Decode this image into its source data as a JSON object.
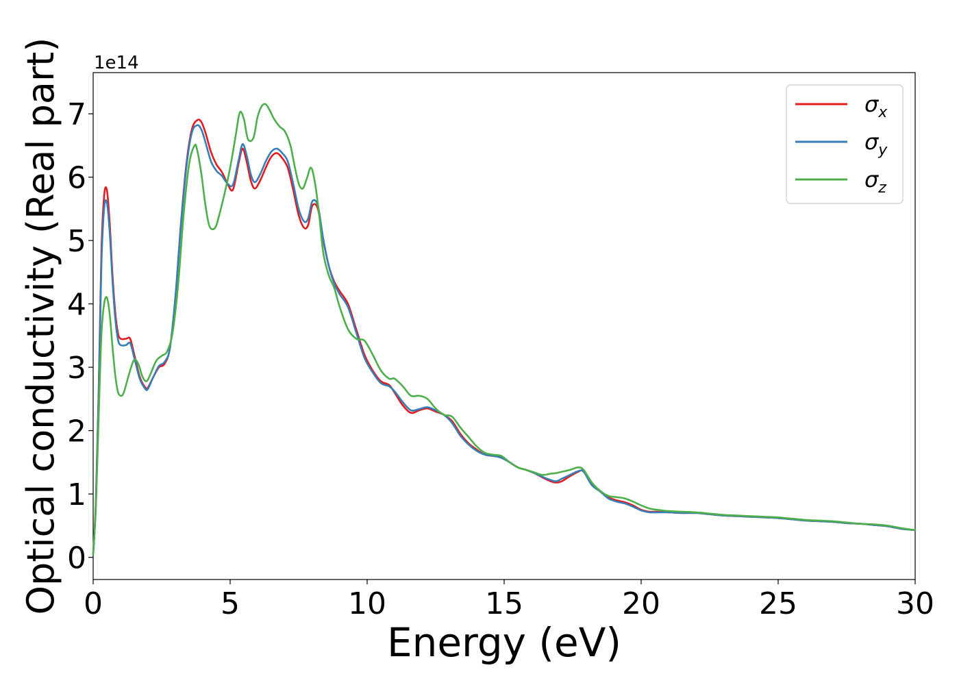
{
  "chart_data": {
    "type": "line",
    "title": "",
    "xlabel": "Energy (eV)",
    "ylabel": "Optical conductivity (Real part)",
    "y_offset_text": "1e14",
    "xlim": [
      0,
      30
    ],
    "ylim": [
      -0.35,
      7.65
    ],
    "x_ticks": [
      0,
      5,
      10,
      15,
      20,
      25,
      30
    ],
    "x_tick_labels": [
      "0",
      "5",
      "10",
      "15",
      "20",
      "25",
      "30"
    ],
    "y_ticks": [
      0,
      1,
      2,
      3,
      4,
      5,
      6,
      7
    ],
    "y_tick_labels": [
      "0",
      "1",
      "2",
      "3",
      "4",
      "5",
      "6",
      "7"
    ],
    "grid": false,
    "legend_position": "top-right",
    "series": [
      {
        "name": "σx",
        "name_base": "σ",
        "name_sub": "x",
        "color": "#e41a1c",
        "x": [
          0,
          0.1,
          0.2,
          0.3,
          0.4,
          0.5,
          0.6,
          0.7,
          0.8,
          0.9,
          1.0,
          1.2,
          1.35,
          1.5,
          1.7,
          1.9,
          2.0,
          2.2,
          2.4,
          2.6,
          2.8,
          3.0,
          3.2,
          3.4,
          3.6,
          3.8,
          3.95,
          4.1,
          4.3,
          4.5,
          4.7,
          4.9,
          5.1,
          5.3,
          5.45,
          5.6,
          5.75,
          5.9,
          6.1,
          6.3,
          6.5,
          6.7,
          6.9,
          7.1,
          7.3,
          7.5,
          7.7,
          7.85,
          8.0,
          8.2,
          8.4,
          8.6,
          8.8,
          9.0,
          9.3,
          9.6,
          9.9,
          10.2,
          10.5,
          10.8,
          11.0,
          11.3,
          11.6,
          11.9,
          12.2,
          12.5,
          12.8,
          13.1,
          13.4,
          13.7,
          14.0,
          14.3,
          14.6,
          14.9,
          15.2,
          15.5,
          15.8,
          16.1,
          16.4,
          16.7,
          16.9,
          17.1,
          17.4,
          17.7,
          17.9,
          18.2,
          18.5,
          18.8,
          19.1,
          19.4,
          19.7,
          20.0,
          20.3,
          20.6,
          21.0,
          21.5,
          22.0,
          22.5,
          23.0,
          23.5,
          24.0,
          24.5,
          25.0,
          25.5,
          26.0,
          26.5,
          27.0,
          27.5,
          28.0,
          28.5,
          29.0,
          29.5,
          30.0
        ],
        "y": [
          0.05,
          0.9,
          2.6,
          4.8,
          5.7,
          5.8,
          5.3,
          4.5,
          3.9,
          3.55,
          3.45,
          3.45,
          3.45,
          3.2,
          2.85,
          2.68,
          2.68,
          2.85,
          3.0,
          3.05,
          3.3,
          4.1,
          5.25,
          6.2,
          6.75,
          6.9,
          6.87,
          6.7,
          6.4,
          6.2,
          6.08,
          5.9,
          5.8,
          6.2,
          6.45,
          6.25,
          5.95,
          5.82,
          5.95,
          6.15,
          6.32,
          6.38,
          6.3,
          6.15,
          5.8,
          5.4,
          5.2,
          5.25,
          5.55,
          5.5,
          5.0,
          4.6,
          4.35,
          4.2,
          4.0,
          3.6,
          3.2,
          2.95,
          2.78,
          2.72,
          2.6,
          2.4,
          2.28,
          2.32,
          2.35,
          2.3,
          2.25,
          2.15,
          1.95,
          1.8,
          1.7,
          1.62,
          1.6,
          1.58,
          1.5,
          1.42,
          1.38,
          1.33,
          1.26,
          1.2,
          1.18,
          1.2,
          1.28,
          1.35,
          1.36,
          1.15,
          1.05,
          0.95,
          0.9,
          0.87,
          0.82,
          0.75,
          0.72,
          0.72,
          0.71,
          0.7,
          0.7,
          0.68,
          0.66,
          0.65,
          0.64,
          0.63,
          0.62,
          0.6,
          0.58,
          0.57,
          0.56,
          0.54,
          0.53,
          0.51,
          0.49,
          0.45,
          0.43
        ]
      },
      {
        "name": "σy",
        "name_base": "σ",
        "name_sub": "y",
        "color": "#377eb8",
        "x": [
          0,
          0.1,
          0.2,
          0.3,
          0.4,
          0.5,
          0.6,
          0.7,
          0.8,
          0.9,
          1.0,
          1.2,
          1.35,
          1.5,
          1.7,
          1.9,
          2.0,
          2.2,
          2.4,
          2.6,
          2.8,
          3.0,
          3.2,
          3.4,
          3.6,
          3.8,
          3.95,
          4.1,
          4.3,
          4.5,
          4.7,
          4.9,
          5.1,
          5.3,
          5.45,
          5.6,
          5.75,
          5.9,
          6.1,
          6.3,
          6.5,
          6.7,
          6.9,
          7.1,
          7.3,
          7.5,
          7.7,
          7.85,
          8.0,
          8.2,
          8.4,
          8.6,
          8.8,
          9.0,
          9.3,
          9.6,
          9.9,
          10.2,
          10.5,
          10.8,
          11.0,
          11.3,
          11.6,
          11.9,
          12.2,
          12.5,
          12.8,
          13.1,
          13.4,
          13.7,
          14.0,
          14.3,
          14.6,
          14.9,
          15.2,
          15.5,
          15.8,
          16.1,
          16.4,
          16.7,
          16.9,
          17.1,
          17.4,
          17.7,
          17.9,
          18.2,
          18.5,
          18.8,
          19.1,
          19.4,
          19.7,
          20.0,
          20.3,
          20.6,
          21.0,
          21.5,
          22.0,
          22.5,
          23.0,
          23.5,
          24.0,
          24.5,
          25.0,
          25.5,
          26.0,
          26.5,
          27.0,
          27.5,
          28.0,
          28.5,
          29.0,
          29.5,
          30.0
        ],
        "y": [
          0.05,
          0.85,
          2.5,
          4.6,
          5.5,
          5.6,
          5.15,
          4.4,
          3.8,
          3.45,
          3.35,
          3.35,
          3.38,
          3.15,
          2.82,
          2.66,
          2.66,
          2.85,
          3.02,
          3.08,
          3.3,
          4.1,
          5.22,
          6.15,
          6.7,
          6.82,
          6.75,
          6.55,
          6.25,
          6.1,
          6.02,
          5.9,
          5.88,
          6.25,
          6.52,
          6.35,
          6.05,
          5.92,
          6.05,
          6.25,
          6.4,
          6.45,
          6.38,
          6.25,
          5.9,
          5.5,
          5.3,
          5.35,
          5.62,
          5.55,
          5.02,
          4.6,
          4.32,
          4.15,
          3.95,
          3.55,
          3.15,
          2.92,
          2.75,
          2.7,
          2.62,
          2.45,
          2.32,
          2.34,
          2.37,
          2.32,
          2.25,
          2.12,
          1.92,
          1.78,
          1.68,
          1.62,
          1.6,
          1.57,
          1.5,
          1.42,
          1.38,
          1.33,
          1.27,
          1.22,
          1.2,
          1.24,
          1.3,
          1.36,
          1.35,
          1.14,
          1.04,
          0.93,
          0.88,
          0.85,
          0.8,
          0.74,
          0.71,
          0.71,
          0.71,
          0.7,
          0.7,
          0.68,
          0.66,
          0.65,
          0.64,
          0.63,
          0.62,
          0.6,
          0.58,
          0.57,
          0.56,
          0.54,
          0.53,
          0.51,
          0.49,
          0.45,
          0.43
        ]
      },
      {
        "name": "σz",
        "name_base": "σ",
        "name_sub": "z",
        "color": "#4daf4a",
        "x": [
          0,
          0.1,
          0.2,
          0.3,
          0.4,
          0.5,
          0.6,
          0.7,
          0.8,
          0.9,
          1.0,
          1.1,
          1.2,
          1.35,
          1.5,
          1.65,
          1.8,
          1.95,
          2.1,
          2.3,
          2.5,
          2.7,
          2.9,
          3.1,
          3.3,
          3.5,
          3.7,
          3.8,
          3.95,
          4.1,
          4.25,
          4.45,
          4.6,
          4.8,
          5.0,
          5.2,
          5.35,
          5.5,
          5.65,
          5.85,
          6.0,
          6.15,
          6.3,
          6.45,
          6.6,
          6.8,
          7.0,
          7.2,
          7.35,
          7.5,
          7.65,
          7.8,
          7.95,
          8.1,
          8.25,
          8.4,
          8.6,
          8.8,
          9.0,
          9.3,
          9.6,
          9.9,
          10.2,
          10.5,
          10.8,
          11.0,
          11.3,
          11.6,
          11.9,
          12.2,
          12.5,
          12.8,
          13.1,
          13.4,
          13.7,
          14.0,
          14.3,
          14.6,
          14.9,
          15.2,
          15.5,
          15.8,
          16.1,
          16.4,
          16.7,
          16.9,
          17.1,
          17.4,
          17.7,
          17.9,
          18.2,
          18.5,
          18.8,
          19.1,
          19.4,
          19.7,
          20.0,
          20.3,
          20.6,
          21.0,
          21.5,
          22.0,
          22.5,
          23.0,
          23.5,
          24.0,
          24.5,
          25.0,
          25.5,
          26.0,
          26.5,
          27.0,
          27.5,
          28.0,
          28.5,
          29.0,
          29.5,
          30.0
        ],
        "y": [
          0.05,
          0.8,
          2.2,
          3.5,
          4.0,
          4.1,
          3.85,
          3.35,
          2.9,
          2.62,
          2.55,
          2.58,
          2.72,
          2.95,
          3.12,
          3.05,
          2.85,
          2.78,
          2.9,
          3.1,
          3.18,
          3.25,
          3.55,
          4.3,
          5.4,
          6.2,
          6.5,
          6.42,
          6.05,
          5.55,
          5.22,
          5.2,
          5.4,
          5.75,
          6.15,
          6.65,
          7.02,
          6.92,
          6.6,
          6.62,
          6.95,
          7.12,
          7.15,
          7.05,
          6.92,
          6.8,
          6.72,
          6.5,
          6.18,
          5.9,
          5.82,
          5.98,
          6.15,
          5.9,
          5.4,
          4.8,
          4.45,
          4.25,
          3.95,
          3.6,
          3.45,
          3.42,
          3.2,
          2.95,
          2.82,
          2.82,
          2.7,
          2.55,
          2.55,
          2.5,
          2.35,
          2.25,
          2.22,
          2.05,
          1.9,
          1.75,
          1.65,
          1.62,
          1.6,
          1.5,
          1.42,
          1.38,
          1.34,
          1.3,
          1.32,
          1.33,
          1.35,
          1.38,
          1.42,
          1.38,
          1.18,
          1.05,
          0.97,
          0.95,
          0.93,
          0.88,
          0.82,
          0.77,
          0.75,
          0.73,
          0.72,
          0.71,
          0.69,
          0.67,
          0.66,
          0.65,
          0.64,
          0.63,
          0.61,
          0.59,
          0.58,
          0.57,
          0.55,
          0.53,
          0.52,
          0.5,
          0.46,
          0.43
        ]
      }
    ]
  }
}
